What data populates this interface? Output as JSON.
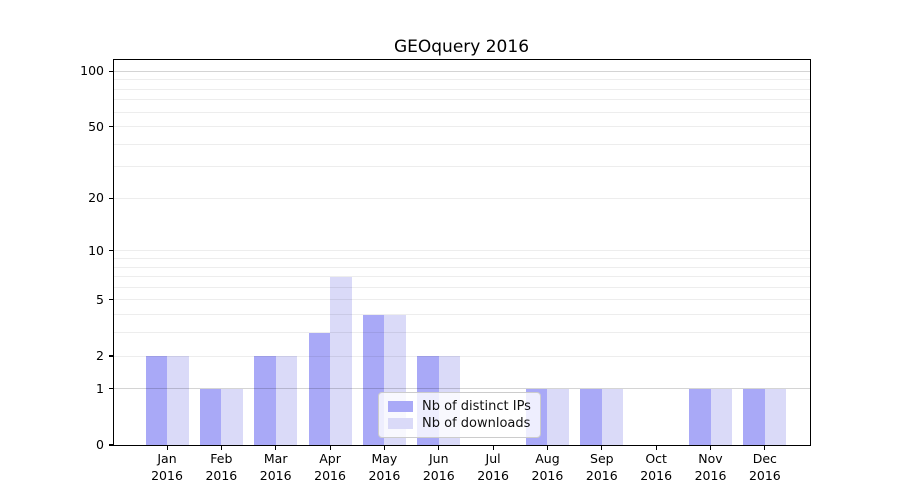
{
  "title": "GEOquery 2016",
  "legend": {
    "items": [
      {
        "label": "Nb of distinct IPs",
        "color": "#a9a9f7"
      },
      {
        "label": "Nb of downloads",
        "color": "#dadaf8"
      }
    ]
  },
  "chart_data": {
    "type": "bar",
    "title": "GEOquery 2016",
    "xlabel": "",
    "ylabel": "",
    "yscale": "log1p",
    "ylim": [
      0,
      115
    ],
    "grid": "on",
    "legend_position": "inside lower-center",
    "year_label": "2016",
    "categories": [
      "Jan",
      "Feb",
      "Mar",
      "Apr",
      "May",
      "Jun",
      "Jul",
      "Aug",
      "Sep",
      "Oct",
      "Nov",
      "Dec"
    ],
    "yticks": [
      0,
      1,
      2,
      5,
      10,
      20,
      50,
      100
    ],
    "minor_gridlines": [
      2,
      3,
      4,
      5,
      6,
      7,
      8,
      9,
      10,
      20,
      30,
      40,
      50,
      60,
      70,
      80,
      90
    ],
    "major_gridlines": [
      1,
      100
    ],
    "series": [
      {
        "name": "Nb of distinct IPs",
        "color": "#a9a9f7",
        "values": [
          2,
          1,
          2,
          3,
          4,
          2,
          0,
          1,
          1,
          0,
          1,
          1
        ]
      },
      {
        "name": "Nb of downloads",
        "color": "#dadaf8",
        "values": [
          2,
          1,
          2,
          7,
          4,
          2,
          0,
          1,
          1,
          0,
          1,
          1
        ]
      }
    ]
  }
}
